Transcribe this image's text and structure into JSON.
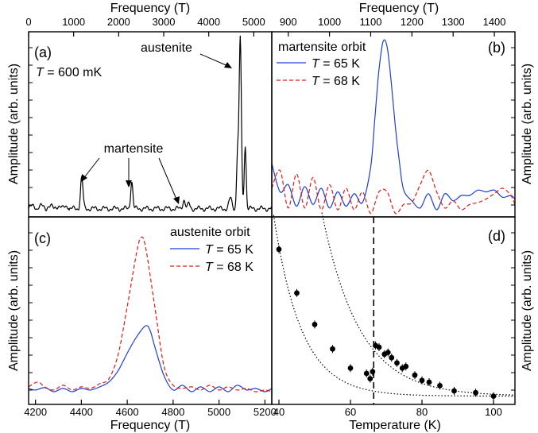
{
  "colors": {
    "frame": "#000000",
    "blue": "#1f3fd6",
    "red": "#e01a1a"
  },
  "axes": {
    "top_a_label": "Frequency (T)",
    "top_b_label": "Frequency (T)",
    "bottom_c_label": "Frequency (T)",
    "bottom_d_label": "Temperature (K)",
    "left_a_label": "Amplitude (arb. units)",
    "left_c_label": "Amplitude (arb. units)",
    "right_b_label": "Amplitude (arb. units)",
    "right_d_label": "Amplitude (arb. units)",
    "top_a_ticks": [
      "0",
      "1000",
      "2000",
      "3000",
      "4000",
      "5000"
    ],
    "top_b_ticks": [
      "900",
      "1000",
      "1100",
      "1200",
      "1300",
      "1400"
    ],
    "bottom_c_ticks": [
      "4200",
      "4400",
      "4600",
      "4800",
      "5000",
      "5200"
    ],
    "bottom_d_ticks": [
      "40",
      "60",
      "80",
      "100"
    ]
  },
  "panels": {
    "a": {
      "letter": "(a)",
      "temp_sym": "T",
      "temp_rest": " = 600 mK",
      "austenite": "austenite",
      "martensite": "martensite"
    },
    "b": {
      "letter": "(b)",
      "legend_title": "martensite orbit",
      "l1_sym": "T",
      "l1_rest": " = 65 K",
      "l2_sym": "T",
      "l2_rest": " = 68 K"
    },
    "c": {
      "letter": "(c)",
      "legend_title": "austenite orbit",
      "l1_sym": "T",
      "l1_rest": " = 65 K",
      "l2_sym": "T",
      "l2_rest": " = 68 K"
    },
    "d": {
      "letter": "(d)"
    }
  },
  "chart_data": [
    {
      "panel": "a",
      "type": "line",
      "xlabel": "Frequency (T)",
      "ylabel": "Amplitude (arb. units)",
      "xlim": [
        0,
        5400
      ],
      "ylim": [
        0,
        1
      ],
      "peaks": [
        {
          "x": 1180,
          "y": 0.18,
          "w": 38
        },
        {
          "x": 2290,
          "y": 0.16,
          "w": 34
        },
        {
          "x": 3450,
          "y": 0.05,
          "w": 40
        },
        {
          "x": 3560,
          "y": 0.03,
          "w": 30
        },
        {
          "x": 4480,
          "y": 0.06,
          "w": 45
        },
        {
          "x": 4700,
          "y": 0.98,
          "w": 35
        },
        {
          "x": 4810,
          "y": 0.37,
          "w": 30
        },
        {
          "x": 4640,
          "y": 0.32,
          "w": 30
        }
      ]
    },
    {
      "panel": "b",
      "type": "line",
      "xlabel": "Frequency (T)",
      "xlim": [
        860,
        1450
      ],
      "ylim": [
        0,
        1
      ],
      "series": [
        {
          "name": "T = 65 K",
          "x": [
            860,
            880,
            900,
            920,
            940,
            960,
            980,
            1000,
            1020,
            1040,
            1060,
            1080,
            1100,
            1110,
            1120,
            1130,
            1140,
            1150,
            1160,
            1170,
            1180,
            1200,
            1220,
            1240,
            1260,
            1280,
            1300,
            1320,
            1340,
            1360,
            1380,
            1400,
            1420,
            1440,
            1450
          ],
          "y": [
            0.3,
            0.14,
            0.18,
            0.06,
            0.17,
            0.07,
            0.16,
            0.05,
            0.14,
            0.06,
            0.13,
            0.08,
            0.28,
            0.55,
            0.82,
            0.98,
            0.95,
            0.75,
            0.5,
            0.3,
            0.15,
            0.09,
            0.05,
            0.13,
            0.04,
            0.13,
            0.09,
            0.12,
            0.12,
            0.15,
            0.14,
            0.15,
            0.11,
            0.12,
            0.1
          ]
        },
        {
          "name": "T = 68 K",
          "x": [
            860,
            880,
            900,
            920,
            940,
            960,
            980,
            1000,
            1020,
            1040,
            1060,
            1080,
            1100,
            1120,
            1140,
            1160,
            1180,
            1200,
            1220,
            1240,
            1260,
            1280,
            1300,
            1320,
            1340,
            1360,
            1380,
            1400,
            1420,
            1440,
            1450
          ],
          "y": [
            0.16,
            0.26,
            0.05,
            0.24,
            0.05,
            0.22,
            0.04,
            0.18,
            0.04,
            0.16,
            0.04,
            0.14,
            0.02,
            0.14,
            0.14,
            0.02,
            0.07,
            0.08,
            0.18,
            0.26,
            0.14,
            0.05,
            0.09,
            0.04,
            0.07,
            0.08,
            0.1,
            0.13,
            0.16,
            0.12,
            0.07
          ]
        }
      ]
    },
    {
      "panel": "c",
      "type": "line",
      "xlabel": "Frequency (T)",
      "xlim": [
        4170,
        5230
      ],
      "ylim": [
        0,
        1
      ],
      "series": [
        {
          "name": "T = 65 K",
          "x": [
            4170,
            4200,
            4240,
            4280,
            4320,
            4360,
            4400,
            4440,
            4480,
            4520,
            4560,
            4600,
            4640,
            4680,
            4700,
            4720,
            4760,
            4800,
            4840,
            4880,
            4920,
            4960,
            5000,
            5040,
            5080,
            5120,
            5160,
            5200,
            5230
          ],
          "y": [
            0.04,
            0.03,
            0.045,
            0.02,
            0.04,
            0.02,
            0.04,
            0.03,
            0.05,
            0.08,
            0.15,
            0.26,
            0.36,
            0.43,
            0.4,
            0.3,
            0.12,
            0.03,
            0.06,
            0.02,
            0.05,
            0.02,
            0.05,
            0.02,
            0.06,
            0.03,
            0.04,
            0.02,
            0.04
          ]
        },
        {
          "name": "T = 68 K",
          "x": [
            4170,
            4210,
            4240,
            4280,
            4320,
            4360,
            4400,
            4440,
            4480,
            4520,
            4560,
            4600,
            4640,
            4660,
            4680,
            4720,
            4760,
            4800,
            4840,
            4880,
            4920,
            4960,
            5000,
            5040,
            5080,
            5120,
            5160,
            5200,
            5230
          ],
          "y": [
            0.05,
            0.08,
            0.05,
            0.03,
            0.06,
            0.03,
            0.05,
            0.04,
            0.07,
            0.1,
            0.25,
            0.55,
            0.88,
            0.98,
            0.92,
            0.55,
            0.18,
            0.06,
            0.04,
            0.05,
            0.03,
            0.06,
            0.03,
            0.05,
            0.03,
            0.04,
            0.02,
            0.03,
            0.02
          ]
        }
      ]
    },
    {
      "panel": "d",
      "type": "scatter",
      "xlabel": "Temperature (K)",
      "ylabel": "Amplitude (arb. units)",
      "xlim": [
        38,
        106
      ],
      "ylim": [
        0,
        1
      ],
      "dashed_vline_x": 66.5,
      "points": [
        {
          "x": 40,
          "y": 0.86
        },
        {
          "x": 45,
          "y": 0.61
        },
        {
          "x": 50,
          "y": 0.43
        },
        {
          "x": 55,
          "y": 0.29
        },
        {
          "x": 60,
          "y": 0.18
        },
        {
          "x": 64.5,
          "y": 0.15
        },
        {
          "x": 65.5,
          "y": 0.12
        },
        {
          "x": 66.2,
          "y": 0.16
        },
        {
          "x": 67,
          "y": 0.31
        },
        {
          "x": 68,
          "y": 0.3
        },
        {
          "x": 69.5,
          "y": 0.26
        },
        {
          "x": 70.5,
          "y": 0.27
        },
        {
          "x": 71.5,
          "y": 0.24
        },
        {
          "x": 73,
          "y": 0.21
        },
        {
          "x": 74.5,
          "y": 0.18
        },
        {
          "x": 75.5,
          "y": 0.19
        },
        {
          "x": 78,
          "y": 0.14
        },
        {
          "x": 80,
          "y": 0.11
        },
        {
          "x": 82,
          "y": 0.1
        },
        {
          "x": 85,
          "y": 0.08
        },
        {
          "x": 89,
          "y": 0.05
        },
        {
          "x": 95,
          "y": 0.04
        },
        {
          "x": 100,
          "y": 0.02
        }
      ]
    }
  ]
}
